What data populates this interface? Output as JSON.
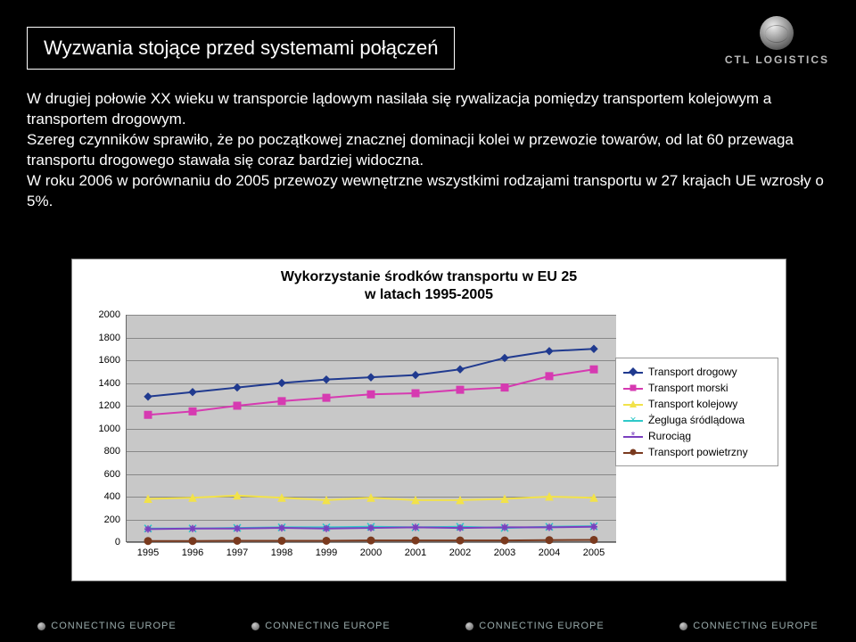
{
  "brand": "CTL LOGISTICS",
  "title": "Wyzwania stojące przed systemami połączeń",
  "paragraphs": [
    "W drugiej połowie XX wieku w transporcie lądowym nasilała się rywalizacja pomiędzy transportem kolejowym a transportem drogowym.",
    "Szereg czynników sprawiło, że po początkowej znacznej dominacji kolei w przewozie towarów, od lat 60 przewaga transportu drogowego stawała się coraz bardziej widoczna.",
    "W roku 2006 w porównaniu do 2005 przewozy wewnętrzne wszystkimi rodzajami transportu w 27 krajach UE wzrosły o 5%."
  ],
  "chart": {
    "title_l1": "Wykorzystanie środków transportu w EU 25",
    "title_l2": "w latach 1995-2005",
    "background_color": "#c8c8c8",
    "grid_color": "#888888",
    "ylim": [
      0,
      2000
    ],
    "ytick_step": 200,
    "yticks": [
      0,
      200,
      400,
      600,
      800,
      1000,
      1200,
      1400,
      1600,
      1800,
      2000
    ],
    "categories": [
      "1995",
      "1996",
      "1997",
      "1998",
      "1999",
      "2000",
      "2001",
      "2002",
      "2003",
      "2004",
      "2005"
    ],
    "series": [
      {
        "name": "Transport drogowy",
        "color": "#203a8f",
        "marker": "diamond",
        "values": [
          1280,
          1320,
          1360,
          1400,
          1430,
          1450,
          1470,
          1520,
          1620,
          1680,
          1700
        ]
      },
      {
        "name": "Transport morski",
        "color": "#d63ab1",
        "marker": "square",
        "values": [
          1120,
          1150,
          1200,
          1240,
          1270,
          1300,
          1310,
          1340,
          1360,
          1460,
          1520
        ]
      },
      {
        "name": "Transport kolejowy",
        "color": "#f2e24a",
        "marker": "triangle",
        "values": [
          380,
          390,
          410,
          390,
          370,
          390,
          370,
          370,
          380,
          400,
          390
        ]
      },
      {
        "name": "Żegluga śródlądowa",
        "color": "#2fc9c9",
        "marker": "x",
        "values": [
          120,
          120,
          125,
          130,
          130,
          135,
          130,
          135,
          125,
          135,
          140
        ]
      },
      {
        "name": "Rurociąg",
        "color": "#7a3fbf",
        "marker": "star",
        "values": [
          115,
          120,
          120,
          125,
          120,
          125,
          130,
          125,
          130,
          130,
          135
        ]
      },
      {
        "name": "Transport powietrzny",
        "color": "#7a3a1f",
        "marker": "circle",
        "values": [
          10,
          10,
          12,
          12,
          12,
          15,
          15,
          15,
          15,
          18,
          20
        ]
      }
    ],
    "legend_labels": [
      "Transport drogowy",
      "Transport morski",
      "Transport kolejowy",
      "Żegluga śródlądowa",
      "Rurociąg",
      "Transport powietrzny"
    ]
  },
  "footer_item": "CONNECTING EUROPE"
}
